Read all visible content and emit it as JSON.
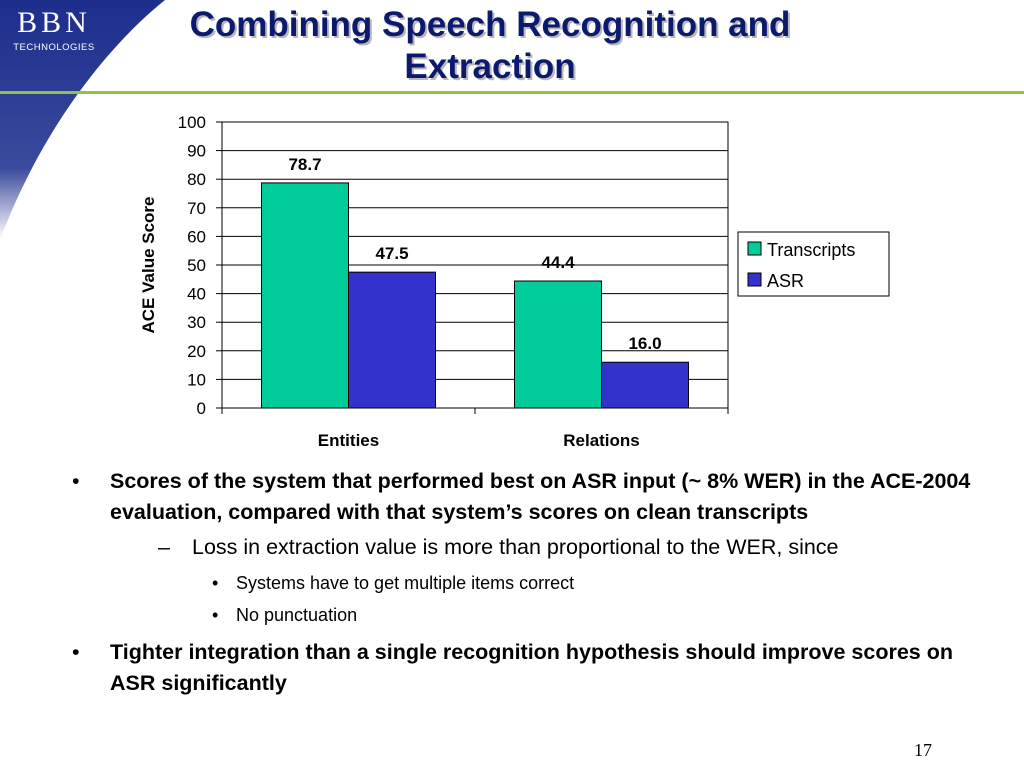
{
  "logo": {
    "brand": "BBN",
    "sub": "TECHNOLOGIES"
  },
  "title": "Combining Speech Recognition and Extraction",
  "colors": {
    "transcripts": "#00cc99",
    "asr": "#3333cc",
    "title": "#0c1a6e",
    "accent": "#8cc63f",
    "logo_band": "#1c2d8c"
  },
  "chart_data": {
    "type": "bar",
    "categories": [
      "Entities",
      "Relations"
    ],
    "series": [
      {
        "name": "Transcripts",
        "values": [
          78.7,
          44.4
        ],
        "labels": [
          "78.7",
          "44.4"
        ]
      },
      {
        "name": "ASR",
        "values": [
          47.5,
          16.0
        ],
        "labels": [
          "47.5",
          "16.0"
        ]
      }
    ],
    "xlabel": "",
    "ylabel": "ACE Value Score",
    "ylim": [
      0,
      100
    ],
    "yticks": [
      0,
      10,
      20,
      30,
      40,
      50,
      60,
      70,
      80,
      90,
      100
    ],
    "grid": true,
    "legend": "right"
  },
  "bullets": [
    {
      "text": "Scores of the system that performed best on ASR input (~ 8% WER) in the ACE-2004 evaluation, compared with that system’s scores on clean transcripts",
      "sub": [
        {
          "text": "Loss in extraction value is more than proportional to the WER, since",
          "sub": [
            "Systems have to get multiple items correct",
            "No punctuation"
          ]
        }
      ]
    },
    {
      "text": "Tighter integration than a single recognition hypothesis should improve scores on ASR significantly"
    }
  ],
  "slide_number": "17"
}
